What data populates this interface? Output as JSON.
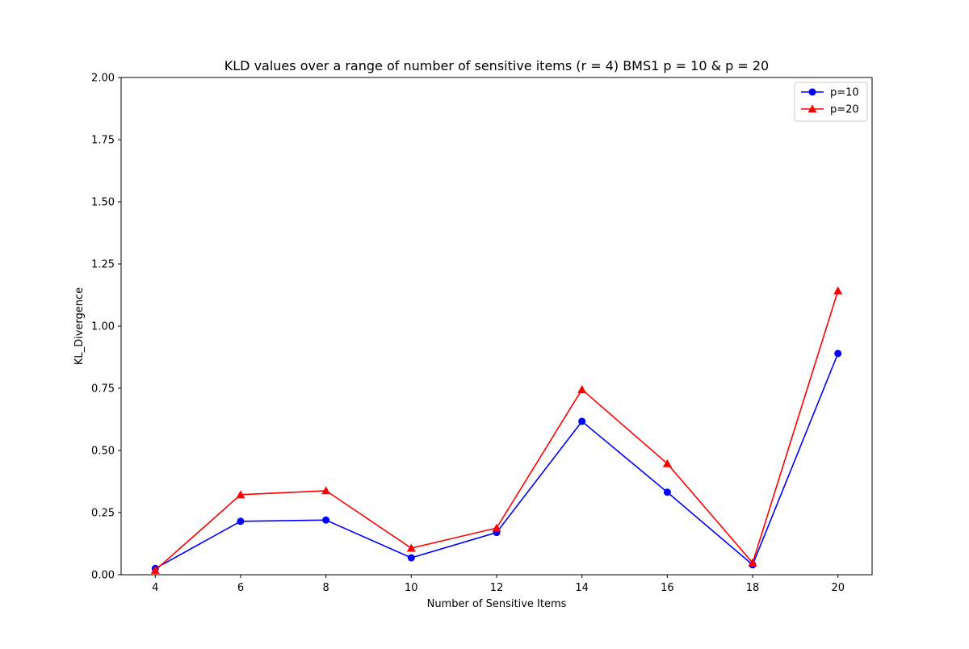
{
  "chart_data": {
    "type": "line",
    "title": "KLD values over a range of number of sensitive items  (r = 4) BMS1 p = 10 & p = 20",
    "xlabel": "Number of Sensitive Items",
    "ylabel": "KL_Divergence",
    "x": [
      4,
      6,
      8,
      10,
      12,
      14,
      16,
      18,
      20
    ],
    "xticks": [
      "4",
      "6",
      "8",
      "10",
      "12",
      "14",
      "16",
      "18",
      "20"
    ],
    "xlim": [
      3.2,
      20.8
    ],
    "ylim": [
      0,
      2
    ],
    "yticks": [
      "0.00",
      "0.25",
      "0.50",
      "0.75",
      "1.00",
      "1.25",
      "1.50",
      "1.75",
      "2.00"
    ],
    "grid": false,
    "legend_position": "top-right",
    "series": [
      {
        "name": "p=10",
        "color": "#0000ff",
        "marker": "circle",
        "values": [
          0.025,
          0.215,
          0.22,
          0.068,
          0.17,
          0.617,
          0.332,
          0.04,
          0.89
        ]
      },
      {
        "name": "p=20",
        "color": "#ff0000",
        "marker": "triangle",
        "values": [
          0.018,
          0.322,
          0.338,
          0.107,
          0.188,
          0.745,
          0.447,
          0.048,
          1.142
        ]
      }
    ]
  }
}
